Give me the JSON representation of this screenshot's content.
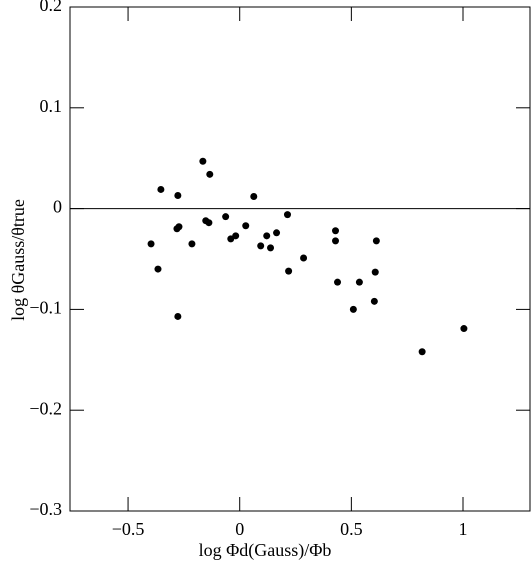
{
  "chart_data": {
    "type": "scatter",
    "x_label": "log Φd(Gauss)/Φb",
    "y_label": "log θGauss/θtrue",
    "color": "#000000",
    "hline": 0,
    "xlim": [
      -0.76,
      1.3
    ],
    "ylim": [
      -0.3,
      0.2
    ],
    "xticks": [
      {
        "value": -0.5,
        "label": "−0.5"
      },
      0,
      0.5,
      1
    ],
    "yticks": [
      {
        "value": -0.3,
        "label": "−0.3"
      },
      {
        "value": -0.2,
        "label": "−0.2"
      },
      {
        "value": -0.1,
        "label": "−0.1"
      },
      0,
      0.1,
      0.2
    ],
    "x": [
      -0.397,
      -0.366,
      -0.353,
      -0.277,
      -0.281,
      -0.272,
      -0.277,
      -0.214,
      -0.165,
      -0.134,
      -0.152,
      -0.138,
      -0.063,
      -0.04,
      -0.018,
      0.027,
      0.063,
      0.094,
      0.121,
      0.138,
      0.165,
      0.214,
      0.219,
      0.286,
      0.429,
      0.429,
      0.438,
      0.509,
      0.536,
      0.603,
      0.607,
      0.612,
      0.817,
      1.004
    ],
    "values": [
      -0.035,
      -0.06,
      0.019,
      0.013,
      -0.02,
      -0.018,
      -0.107,
      -0.035,
      0.047,
      0.034,
      -0.012,
      -0.014,
      -0.008,
      -0.03,
      -0.027,
      -0.017,
      0.012,
      -0.037,
      -0.027,
      -0.039,
      -0.024,
      -0.006,
      -0.062,
      -0.049,
      -0.022,
      -0.032,
      -0.073,
      -0.1,
      -0.073,
      -0.092,
      -0.063,
      -0.032,
      -0.142,
      -0.119
    ]
  }
}
